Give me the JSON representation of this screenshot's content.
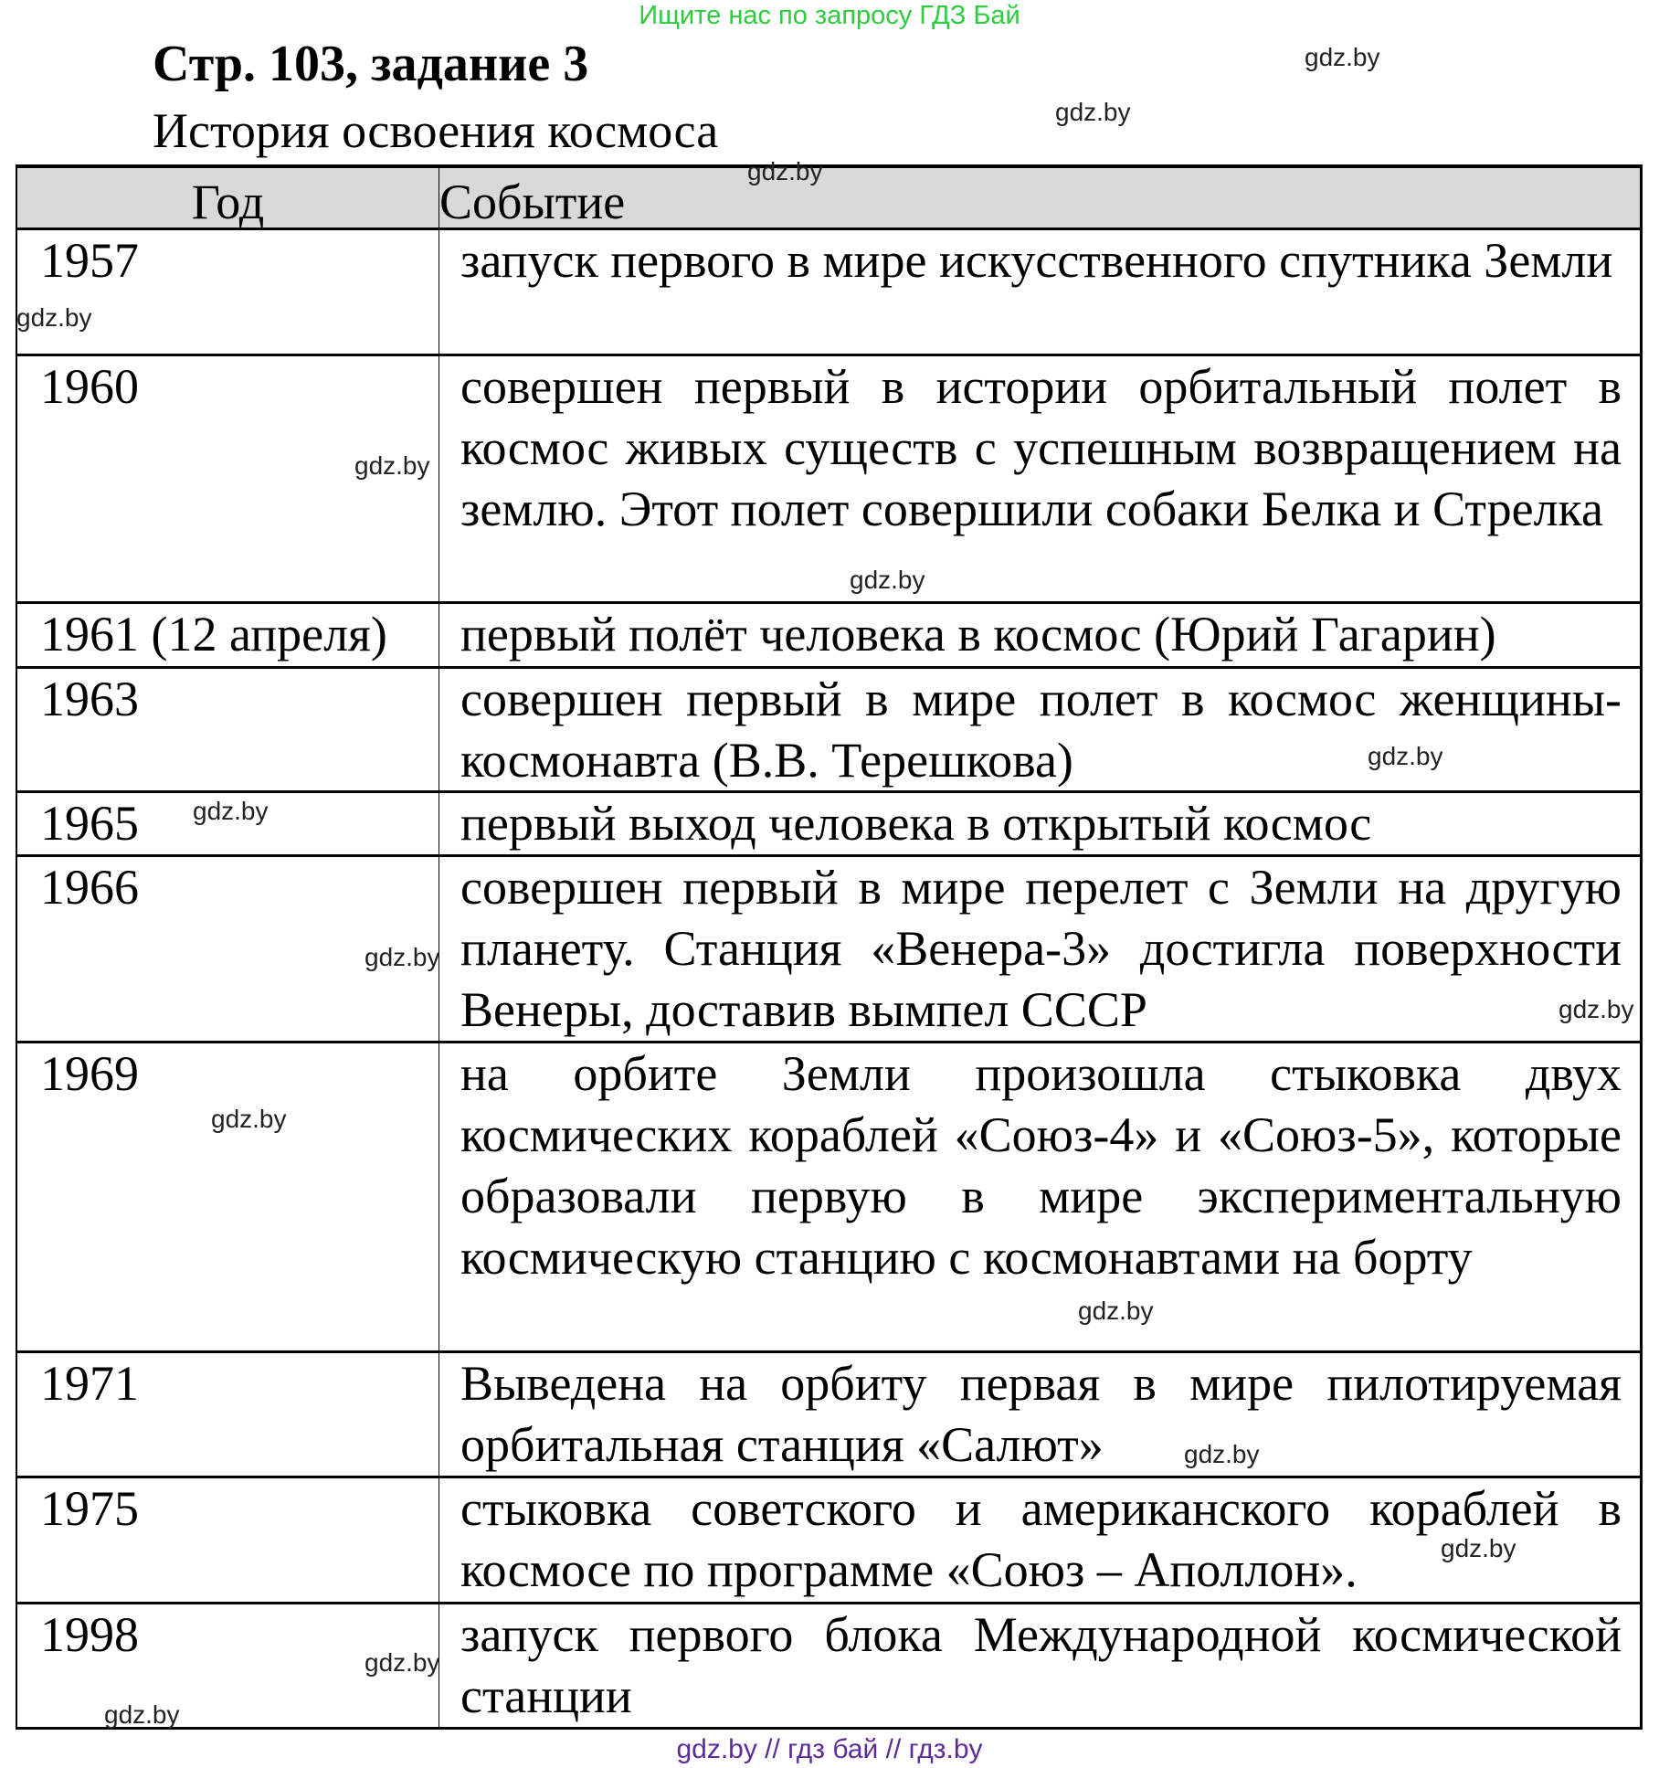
{
  "banner": "Ищите нас по запросу ГДЗ Бай",
  "title": "Стр. 103, задание 3",
  "subtitle": "История освоения космоса",
  "table": {
    "headers": [
      "Год",
      "Событие"
    ],
    "rows": [
      {
        "year": "1957",
        "event": "запуск первого в мире искусственного спутника Земли"
      },
      {
        "year": "1960",
        "event": "совершен первый в истории орбитальный полет в космос живых существ с успешным возвращением на землю. Этот полет совершили собаки Белка и Стрелка"
      },
      {
        "year": "1961 (12 апреля)",
        "event": "первый полёт человека в космос (Юрий Гагарин)"
      },
      {
        "year": "1963",
        "event": "совершен первый в мире полет в космос женщины-космонавта (В.В. Терешкова)"
      },
      {
        "year": "1965",
        "event": "первый выход человека в открытый космос"
      },
      {
        "year": "1966",
        "event": "совершен первый в мире перелет с Земли на другую планету. Станция «Венера-3» достигла поверхности Венеры, доставив вымпел СССР"
      },
      {
        "year": "1969",
        "event": "на орбите Земли произошла стыковка двух космических кораблей «Союз-4» и «Союз-5», которые образовали первую в мире экспериментальную космическую станцию с космонавтами на борту"
      },
      {
        "year": "1971",
        "event": "Выведена на орбиту первая в мире пилотируемая орбитальная станция «Салют»"
      },
      {
        "year": "1975",
        "event": "стыковка советского и американского кораблей в космосе по программе «Союз – Аполлон»."
      },
      {
        "year": "1998",
        "event": "запуск первого блока Международной космической станции"
      }
    ]
  },
  "watermark": "gdz.by",
  "footer": "gdz.by  //  гдз бай  //  гдз.by"
}
